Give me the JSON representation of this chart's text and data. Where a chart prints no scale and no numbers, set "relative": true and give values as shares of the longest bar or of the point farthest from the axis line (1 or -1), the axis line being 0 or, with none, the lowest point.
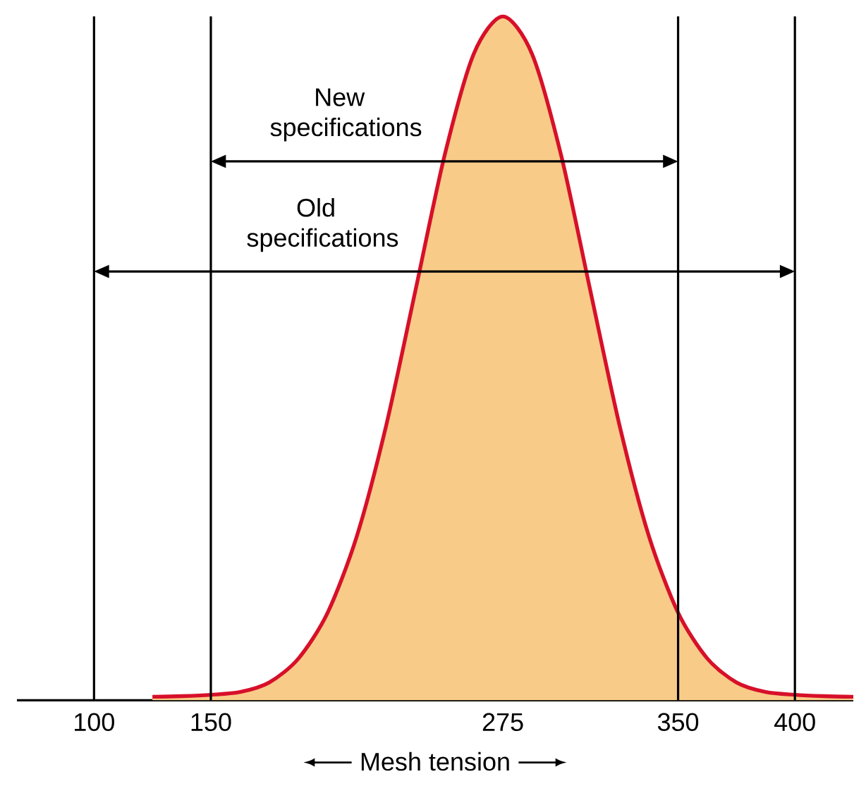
{
  "chart_data": {
    "type": "area",
    "relative": true,
    "xlabel": "Mesh tension",
    "xlim": [
      67,
      425
    ],
    "xticks": [
      100,
      150,
      275,
      350,
      400
    ],
    "x": [
      125,
      137.5,
      150,
      162.5,
      175,
      187.5,
      200,
      212.5,
      225,
      237.5,
      250,
      262.5,
      275,
      287.5,
      300,
      312.5,
      325,
      337.5,
      350,
      362.5,
      375,
      387.5,
      400,
      412.5,
      425
    ],
    "series": [
      {
        "color": "#d7102a",
        "values": [
          0.005,
          0.006,
          0.008,
          0.012,
          0.026,
          0.061,
          0.128,
          0.24,
          0.401,
          0.598,
          0.796,
          0.945,
          1,
          0.945,
          0.796,
          0.598,
          0.401,
          0.24,
          0.128,
          0.061,
          0.026,
          0.012,
          0.008,
          0.006,
          0.005
        ]
      }
    ],
    "ref_lines": [
      {
        "axis": "x",
        "value": 100
      },
      {
        "axis": "x",
        "value": 150
      },
      {
        "axis": "x",
        "value": 350
      },
      {
        "axis": "x",
        "value": 400
      }
    ],
    "annotations": [
      "New specifications",
      "Old specifications"
    ]
  }
}
